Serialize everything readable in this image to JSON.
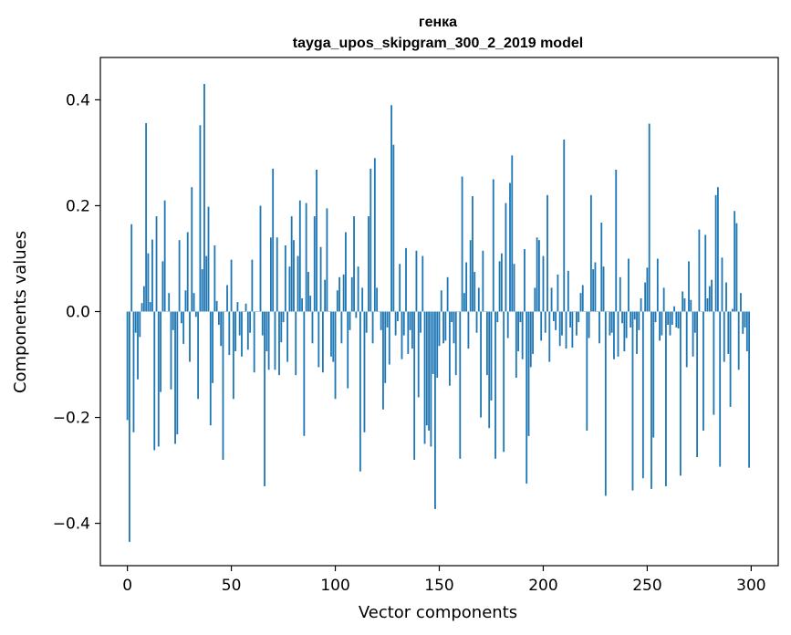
{
  "chart_data": {
    "type": "bar",
    "title": "генка",
    "subtitle": "tayga_upos_skipgram_300_2_2019 model",
    "xlabel": "Vector components",
    "ylabel": "Components values",
    "xlim": [
      -13,
      313
    ],
    "ylim": [
      -0.48,
      0.48
    ],
    "xticks": [
      0,
      50,
      100,
      150,
      200,
      250,
      300
    ],
    "xtick_labels": [
      "0",
      "50",
      "100",
      "150",
      "200",
      "250",
      "300"
    ],
    "yticks": [
      -0.4,
      -0.2,
      0.0,
      0.2,
      0.4
    ],
    "ytick_labels": [
      "−0.4",
      "−0.2",
      "0.0",
      "0.2",
      "0.4"
    ],
    "grid": false,
    "bar_color": "#1f77b4",
    "values": [
      -0.205,
      -0.435,
      0.165,
      -0.228,
      -0.04,
      -0.128,
      -0.048,
      0.016,
      0.048,
      0.356,
      0.11,
      0.018,
      0.136,
      -0.262,
      0.18,
      -0.255,
      -0.152,
      0.095,
      0.21,
      0.0,
      0.035,
      -0.147,
      -0.035,
      -0.25,
      -0.232,
      0.135,
      -0.022,
      -0.061,
      0.04,
      0.15,
      -0.095,
      0.235,
      0.035,
      -0.01,
      -0.165,
      0.352,
      0.08,
      0.43,
      0.105,
      0.198,
      -0.215,
      -0.135,
      0.125,
      0.02,
      -0.025,
      -0.065,
      -0.28,
      0.0,
      0.05,
      -0.082,
      0.098,
      -0.165,
      -0.075,
      0.018,
      -0.045,
      -0.085,
      0.0,
      0.015,
      -0.072,
      -0.04,
      0.098,
      -0.115,
      0.0,
      0.0,
      0.2,
      -0.045,
      -0.33,
      -0.075,
      -0.11,
      0.14,
      0.27,
      -0.11,
      0.14,
      -0.12,
      -0.058,
      -0.02,
      0.125,
      -0.095,
      0.085,
      0.18,
      0.135,
      -0.12,
      0.105,
      0.21,
      0.025,
      -0.235,
      0.205,
      0.075,
      0.03,
      -0.06,
      0.18,
      0.268,
      -0.105,
      0.122,
      -0.115,
      0.06,
      0.195,
      0.0,
      -0.085,
      -0.095,
      -0.165,
      0.04,
      0.065,
      -0.06,
      0.07,
      0.15,
      -0.145,
      -0.035,
      0.065,
      0.18,
      -0.012,
      0.085,
      -0.302,
      0.045,
      -0.228,
      -0.04,
      0.18,
      0.27,
      -0.06,
      0.29,
      0.045,
      0.0,
      -0.035,
      -0.185,
      -0.135,
      -0.03,
      -0.1,
      0.39,
      0.315,
      -0.045,
      -0.018,
      0.09,
      -0.09,
      -0.045,
      0.12,
      -0.08,
      -0.035,
      -0.07,
      -0.28,
      0.115,
      -0.162,
      -0.04,
      0.105,
      -0.25,
      -0.215,
      -0.225,
      -0.255,
      -0.118,
      -0.373,
      -0.125,
      -0.065,
      0.04,
      -0.06,
      -0.055,
      0.065,
      -0.14,
      -0.02,
      -0.06,
      -0.12,
      0.0,
      -0.278,
      0.255,
      0.035,
      0.093,
      -0.07,
      0.135,
      0.218,
      0.075,
      -0.04,
      0.045,
      -0.2,
      0.115,
      0.0,
      -0.12,
      -0.22,
      -0.168,
      0.25,
      -0.278,
      -0.02,
      0.095,
      0.11,
      -0.265,
      0.205,
      -0.05,
      0.243,
      0.295,
      0.09,
      -0.125,
      -0.075,
      -0.02,
      -0.09,
      0.118,
      -0.325,
      -0.235,
      -0.105,
      -0.08,
      0.045,
      0.14,
      0.135,
      -0.055,
      0.105,
      -0.04,
      0.22,
      -0.095,
      0.045,
      -0.018,
      -0.035,
      0.07,
      -0.065,
      -0.045,
      0.325,
      -0.07,
      0.077,
      -0.03,
      -0.068,
      0.0,
      -0.045,
      -0.02,
      0.035,
      0.05,
      0.0,
      -0.225,
      -0.05,
      0.22,
      0.08,
      0.093,
      0.0,
      -0.06,
      0.168,
      0.085,
      -0.348,
      0.0,
      -0.045,
      -0.04,
      -0.09,
      0.268,
      -0.085,
      0.065,
      -0.022,
      -0.075,
      -0.05,
      0.1,
      -0.03,
      -0.338,
      -0.015,
      -0.08,
      -0.035,
      0.025,
      -0.315,
      0.055,
      0.083,
      0.355,
      -0.335,
      -0.238,
      -0.02,
      0.1,
      -0.055,
      -0.045,
      0.045,
      -0.33,
      -0.025,
      -0.045,
      -0.025,
      0.01,
      -0.03,
      -0.032,
      -0.31,
      0.038,
      0.025,
      -0.105,
      0.095,
      0.022,
      -0.085,
      -0.04,
      -0.275,
      0.155,
      0.0,
      -0.225,
      0.145,
      0.025,
      0.048,
      0.06,
      -0.195,
      0.22,
      0.235,
      -0.293,
      0.102,
      -0.095,
      0.055,
      -0.08,
      -0.18,
      0.005,
      0.19,
      0.167,
      -0.11,
      0.035,
      -0.042,
      -0.03,
      -0.075,
      -0.295
    ]
  }
}
